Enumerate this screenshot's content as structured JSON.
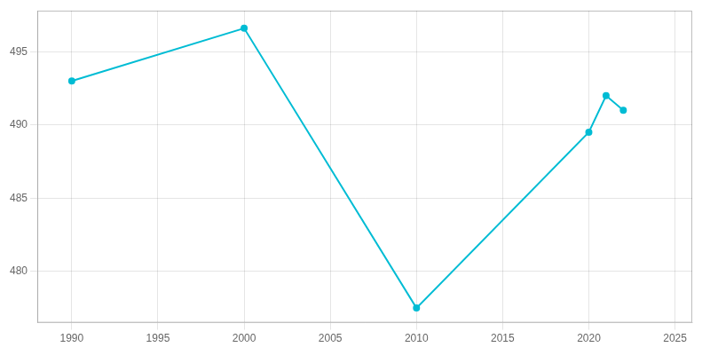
{
  "chart_data": {
    "type": "line",
    "x": [
      1990,
      2000,
      2010,
      2020,
      2021,
      2022
    ],
    "values": [
      493,
      496.6,
      477.5,
      489.5,
      492,
      491
    ],
    "color": "#00bcd4",
    "marker": "circle",
    "xlim": [
      1988,
      2026
    ],
    "ylim": [
      476.5,
      497.8
    ],
    "xticks": [
      1990,
      1995,
      2000,
      2005,
      2010,
      2015,
      2020,
      2025
    ],
    "yticks": [
      480,
      485,
      490,
      495
    ],
    "grid": true
  }
}
